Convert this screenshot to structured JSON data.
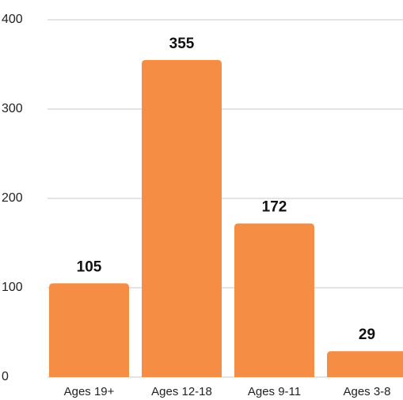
{
  "chart_data": {
    "type": "bar",
    "categories": [
      "Ages 19+",
      "Ages 12-18",
      "Ages 9-11",
      "Ages 3-8"
    ],
    "values": [
      105,
      355,
      172,
      29
    ],
    "color": "#f58d45",
    "ylim": [
      0,
      400
    ],
    "yticks": [
      0,
      100,
      200,
      300,
      400
    ],
    "grid": true
  }
}
